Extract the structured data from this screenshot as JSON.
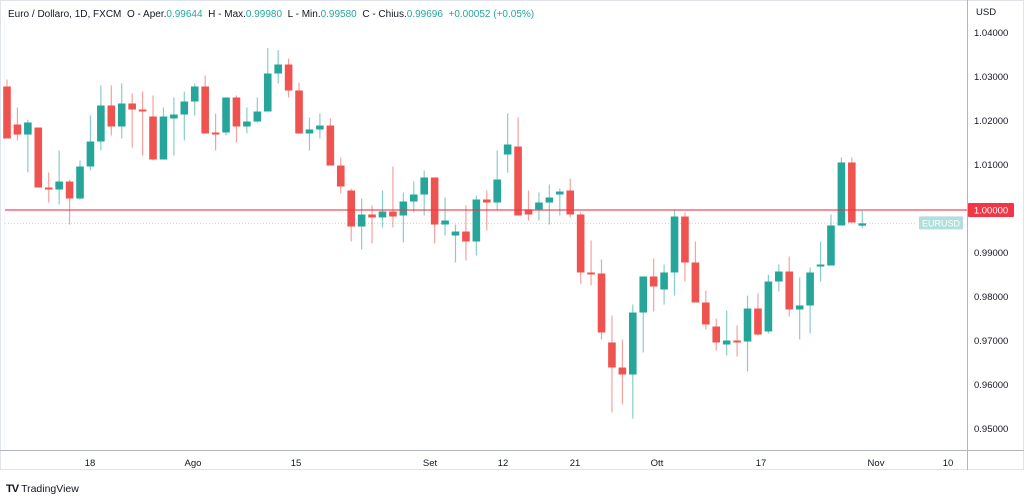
{
  "legend": {
    "symbol": "Euro / Dollaro, 1D, FXCM",
    "open_label": "O - Aper.",
    "open": "0.99644",
    "high_label": "H - Max.",
    "high": "0.99980",
    "low_label": "L - Min.",
    "low": "0.99580",
    "close_label": "C - Chius.",
    "close": "0.99696",
    "change": "+0.00052 (+0.05%)"
  },
  "price_axis": {
    "currency": "USD",
    "ticks": [
      "1.04000",
      "1.03000",
      "1.02000",
      "1.01000",
      "1.00000",
      "0.99000",
      "0.98000",
      "0.97000",
      "0.96000",
      "0.95000"
    ],
    "highlight_price": "1.00000",
    "symbol_tag": "EURUSD"
  },
  "time_axis": {
    "labels": [
      {
        "text": "18",
        "x": 90
      },
      {
        "text": "Ago",
        "x": 193
      },
      {
        "text": "15",
        "x": 296
      },
      {
        "text": "Set",
        "x": 430
      },
      {
        "text": "12",
        "x": 503
      },
      {
        "text": "21",
        "x": 575
      },
      {
        "text": "Ott",
        "x": 657
      },
      {
        "text": "17",
        "x": 761
      },
      {
        "text": "Nov",
        "x": 876
      },
      {
        "text": "10",
        "x": 948
      }
    ]
  },
  "colors": {
    "up": "#26a69a",
    "down": "#ef5350",
    "horizontal_line": "#f23645",
    "symbol_tag_bg": "#b2dfdb",
    "grid": "#f0f3fa",
    "axis_line": "#b2b5be"
  },
  "footer": {
    "brand": "TradingView",
    "logo_mark": "TV"
  },
  "chart_data": {
    "type": "candlestick",
    "title": "Euro / Dollaro, 1D, FXCM",
    "ylabel": "USD",
    "ylim": [
      0.947,
      1.0445
    ],
    "horizontal_line": 1.0,
    "x_tick_labels": [
      "18",
      "Ago",
      "15",
      "Set",
      "12",
      "21",
      "Ott",
      "17",
      "Nov",
      "10"
    ],
    "candles": [
      {
        "o": 1.02807,
        "h": 1.02966,
        "l": 1.01943,
        "c": 1.01625
      },
      {
        "o": 1.01943,
        "h": 1.0233,
        "l": 1.0158,
        "c": 1.01715
      },
      {
        "o": 1.01715,
        "h": 1.02057,
        "l": 1.00852,
        "c": 1.01989
      },
      {
        "o": 1.01875,
        "h": 1.01875,
        "l": 1.00511,
        "c": 1.00511
      },
      {
        "o": 1.00511,
        "h": 1.00852,
        "l": 1.0017,
        "c": 1.00466
      },
      {
        "o": 1.00466,
        "h": 1.01352,
        "l": 1.00125,
        "c": 1.00648
      },
      {
        "o": 1.00648,
        "h": 1.00693,
        "l": 0.9967,
        "c": 1.00261
      },
      {
        "o": 1.00261,
        "h": 1.01125,
        "l": 1.00239,
        "c": 1.00989
      },
      {
        "o": 1.00989,
        "h": 1.02148,
        "l": 1.00898,
        "c": 1.01557
      },
      {
        "o": 1.01557,
        "h": 1.0283,
        "l": 1.01352,
        "c": 1.02375
      },
      {
        "o": 1.02375,
        "h": 1.0283,
        "l": 1.01693,
        "c": 1.01898
      },
      {
        "o": 1.01898,
        "h": 1.02875,
        "l": 1.01625,
        "c": 1.02421
      },
      {
        "o": 1.02421,
        "h": 1.02648,
        "l": 1.0142,
        "c": 1.02284
      },
      {
        "o": 1.02284,
        "h": 1.02693,
        "l": 1.01239,
        "c": 1.02239
      },
      {
        "o": 1.02125,
        "h": 1.02603,
        "l": 1.01125,
        "c": 1.01148
      },
      {
        "o": 1.01148,
        "h": 1.0233,
        "l": 1.0117,
        "c": 1.02125
      },
      {
        "o": 1.0208,
        "h": 1.02557,
        "l": 1.01239,
        "c": 1.0217
      },
      {
        "o": 1.0217,
        "h": 1.02693,
        "l": 1.0158,
        "c": 1.02466
      },
      {
        "o": 1.02466,
        "h": 1.02875,
        "l": 1.02148,
        "c": 1.02807
      },
      {
        "o": 1.02807,
        "h": 1.03057,
        "l": 1.01739,
        "c": 1.01739
      },
      {
        "o": 1.01761,
        "h": 1.02193,
        "l": 1.01352,
        "c": 1.01739
      },
      {
        "o": 1.01761,
        "h": 1.02557,
        "l": 1.01693,
        "c": 1.02557
      },
      {
        "o": 1.02557,
        "h": 1.02603,
        "l": 1.01535,
        "c": 1.01898
      },
      {
        "o": 1.01898,
        "h": 1.0233,
        "l": 1.01739,
        "c": 1.02011
      },
      {
        "o": 1.02011,
        "h": 1.02557,
        "l": 1.01989,
        "c": 1.02239
      },
      {
        "o": 1.02239,
        "h": 1.03682,
        "l": 1.02375,
        "c": 1.03102
      },
      {
        "o": 1.03102,
        "h": 1.03636,
        "l": 1.02875,
        "c": 1.03307
      },
      {
        "o": 1.03307,
        "h": 1.03443,
        "l": 1.02557,
        "c": 1.02716
      },
      {
        "o": 1.02716,
        "h": 1.02898,
        "l": 1.01739,
        "c": 1.01739
      },
      {
        "o": 1.01739,
        "h": 1.02102,
        "l": 1.01352,
        "c": 1.0183
      },
      {
        "o": 1.0183,
        "h": 1.02193,
        "l": 1.01625,
        "c": 1.0192
      },
      {
        "o": 1.0192,
        "h": 1.0208,
        "l": 1.01011,
        "c": 1.01011
      },
      {
        "o": 1.01011,
        "h": 1.01193,
        "l": 1.00375,
        "c": 1.00534
      },
      {
        "o": 1.00443,
        "h": 1.00489,
        "l": 0.99284,
        "c": 0.99625
      },
      {
        "o": 0.99625,
        "h": 1.00261,
        "l": 0.99102,
        "c": 0.99898
      },
      {
        "o": 0.99898,
        "h": 1.00102,
        "l": 0.99239,
        "c": 0.9983
      },
      {
        "o": 0.9983,
        "h": 1.00443,
        "l": 0.99602,
        "c": 0.99966
      },
      {
        "o": 0.99966,
        "h": 1.00989,
        "l": 0.99602,
        "c": 0.99852
      },
      {
        "o": 0.99875,
        "h": 1.00398,
        "l": 0.99261,
        "c": 1.00193
      },
      {
        "o": 1.00193,
        "h": 1.00648,
        "l": 0.99943,
        "c": 1.00352
      },
      {
        "o": 1.00352,
        "h": 1.00898,
        "l": 0.99875,
        "c": 1.00739
      },
      {
        "o": 1.00739,
        "h": 1.00648,
        "l": 0.99239,
        "c": 0.9967
      },
      {
        "o": 0.9967,
        "h": 1.00284,
        "l": 0.9942,
        "c": 0.99761
      },
      {
        "o": 0.9942,
        "h": 0.9967,
        "l": 0.98807,
        "c": 0.99511
      },
      {
        "o": 0.99511,
        "h": 1.00102,
        "l": 0.98852,
        "c": 0.99284
      },
      {
        "o": 0.99284,
        "h": 1.0033,
        "l": 0.98966,
        "c": 1.00239
      },
      {
        "o": 1.00239,
        "h": 1.00443,
        "l": 0.99534,
        "c": 1.0017
      },
      {
        "o": 1.0017,
        "h": 1.01352,
        "l": 0.99989,
        "c": 1.00693
      },
      {
        "o": 1.01261,
        "h": 1.02193,
        "l": 1.00852,
        "c": 1.01489
      },
      {
        "o": 1.01443,
        "h": 1.02102,
        "l": 0.99875,
        "c": 0.99875
      },
      {
        "o": 1.00011,
        "h": 1.00443,
        "l": 0.99761,
        "c": 0.99898
      },
      {
        "o": 1.00011,
        "h": 1.00398,
        "l": 0.99761,
        "c": 1.0017
      },
      {
        "o": 1.0017,
        "h": 1.0058,
        "l": 0.9967,
        "c": 1.00284
      },
      {
        "o": 1.00352,
        "h": 1.00489,
        "l": 0.99875,
        "c": 1.0042
      },
      {
        "o": 1.00443,
        "h": 1.00716,
        "l": 0.9983,
        "c": 0.99898
      },
      {
        "o": 0.99898,
        "h": 0.99943,
        "l": 0.9833,
        "c": 0.9858
      },
      {
        "o": 0.9858,
        "h": 0.99307,
        "l": 0.98284,
        "c": 0.98557
      },
      {
        "o": 0.98557,
        "h": 0.98875,
        "l": 0.97057,
        "c": 0.97216
      },
      {
        "o": 0.96989,
        "h": 0.97602,
        "l": 0.95398,
        "c": 0.9642
      },
      {
        "o": 0.9642,
        "h": 0.97057,
        "l": 0.9558,
        "c": 0.96261
      },
      {
        "o": 0.96261,
        "h": 0.97852,
        "l": 0.95261,
        "c": 0.9767
      },
      {
        "o": 0.9767,
        "h": 0.98489,
        "l": 0.96761,
        "c": 0.98489
      },
      {
        "o": 0.98489,
        "h": 0.98898,
        "l": 0.97693,
        "c": 0.98261
      },
      {
        "o": 0.98193,
        "h": 0.98761,
        "l": 0.97852,
        "c": 0.9858
      },
      {
        "o": 0.9858,
        "h": 1.00011,
        "l": 0.98057,
        "c": 0.99852
      },
      {
        "o": 0.99852,
        "h": 0.99943,
        "l": 0.98375,
        "c": 0.98807
      },
      {
        "o": 0.98807,
        "h": 0.99284,
        "l": 0.97898,
        "c": 0.97898
      },
      {
        "o": 0.97898,
        "h": 0.9817,
        "l": 0.97284,
        "c": 0.97398
      },
      {
        "o": 0.97352,
        "h": 0.97534,
        "l": 0.96807,
        "c": 0.96989
      },
      {
        "o": 0.96943,
        "h": 0.97716,
        "l": 0.96693,
        "c": 0.97034
      },
      {
        "o": 0.97034,
        "h": 0.97375,
        "l": 0.9667,
        "c": 0.97011
      },
      {
        "o": 0.97011,
        "h": 0.98057,
        "l": 0.9633,
        "c": 0.97761
      },
      {
        "o": 0.97761,
        "h": 0.98102,
        "l": 0.97148,
        "c": 0.9717
      },
      {
        "o": 0.97239,
        "h": 0.98534,
        "l": 0.97193,
        "c": 0.98375
      },
      {
        "o": 0.98375,
        "h": 0.98761,
        "l": 0.98148,
        "c": 0.98602
      },
      {
        "o": 0.98602,
        "h": 0.98943,
        "l": 0.9758,
        "c": 0.97739
      },
      {
        "o": 0.97739,
        "h": 0.98466,
        "l": 0.97057,
        "c": 0.9783
      },
      {
        "o": 0.9783,
        "h": 0.98693,
        "l": 0.97193,
        "c": 0.9858
      },
      {
        "o": 0.98761,
        "h": 0.99284,
        "l": 0.98375,
        "c": 0.98761
      },
      {
        "o": 0.98739,
        "h": 0.99898,
        "l": 0.98807,
        "c": 0.99648
      },
      {
        "o": 0.99648,
        "h": 1.01193,
        "l": 0.99716,
        "c": 1.0108
      },
      {
        "o": 1.0108,
        "h": 1.01193,
        "l": 0.99716,
        "c": 0.99716
      },
      {
        "o": 0.99644,
        "h": 0.9998,
        "l": 0.9958,
        "c": 0.99696
      }
    ]
  }
}
